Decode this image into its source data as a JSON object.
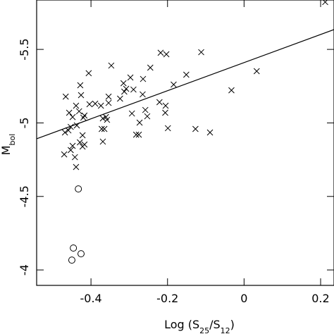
{
  "chart_data": {
    "type": "scatter",
    "xlabel_parts": [
      {
        "text": "Log (S"
      },
      {
        "text": "25",
        "sub": true
      },
      {
        "text": "/S"
      },
      {
        "text": "12",
        "sub": true
      },
      {
        "text": ")"
      }
    ],
    "ylabel_parts": [
      {
        "text": "M"
      },
      {
        "text": "bol",
        "sub": true
      }
    ],
    "xlim": [
      -0.542,
      0.235
    ],
    "ylim": [
      -3.895,
      -5.836
    ],
    "xticks": [
      -0.4,
      -0.2,
      0,
      0.2
    ],
    "yticks": [
      -5.5,
      -5,
      -4.5,
      -4
    ],
    "fit_line": {
      "x": [
        -0.542,
        0.235
      ],
      "y": [
        -4.892,
        -5.635
      ],
      "color": "#000000"
    },
    "series": [
      {
        "marker": "x",
        "color": "#000000",
        "x": [
          0.212,
          -0.466,
          -0.428,
          -0.406,
          -0.426,
          -0.439,
          -0.431,
          -0.457,
          -0.448,
          -0.468,
          -0.459,
          -0.453,
          -0.437,
          -0.42,
          -0.404,
          -0.389,
          -0.417,
          -0.422,
          -0.429,
          -0.417,
          -0.422,
          -0.448,
          -0.453,
          -0.442,
          -0.47,
          -0.439,
          -0.374,
          -0.361,
          -0.369,
          -0.372,
          -0.365,
          -0.358,
          -0.369,
          -0.354,
          -0.347,
          -0.354,
          -0.324,
          -0.313,
          -0.315,
          -0.308,
          -0.297,
          -0.293,
          -0.289,
          -0.282,
          -0.275,
          -0.273,
          -0.265,
          -0.264,
          -0.258,
          -0.253,
          -0.245,
          -0.221,
          -0.218,
          -0.203,
          -0.206,
          -0.205,
          -0.199,
          -0.184,
          -0.151,
          -0.127,
          -0.112,
          -0.033,
          0.033,
          -0.089
        ],
        "values": [
          -5.822,
          -5.179,
          -5.256,
          -5.338,
          -5.189,
          -5.117,
          -5.079,
          -5.069,
          -5.04,
          -4.935,
          -4.949,
          -4.973,
          -4.983,
          -5.036,
          -5.127,
          -5.131,
          -5.05,
          -4.916,
          -4.868,
          -4.853,
          -4.839,
          -4.844,
          -4.815,
          -4.767,
          -4.786,
          -4.7,
          -5.117,
          -5.04,
          -5.031,
          -4.959,
          -4.959,
          -5.021,
          -4.873,
          -5.179,
          -5.39,
          -5.136,
          -5.165,
          -5.213,
          -5.27,
          -5.232,
          -5.309,
          -5.064,
          -5.227,
          -4.92,
          -4.92,
          -5.002,
          -5.194,
          -5.299,
          -5.088,
          -5.045,
          -5.376,
          -5.141,
          -5.477,
          -5.467,
          -5.069,
          -5.117,
          -4.964,
          -5.261,
          -5.328,
          -4.959,
          -5.481,
          -5.222,
          -5.352,
          -4.935
        ]
      },
      {
        "marker": "o",
        "color": "#000000",
        "x": [
          -0.433,
          -0.446,
          -0.426,
          -0.45
        ],
        "values": [
          -4.551,
          -4.149,
          -4.11,
          -4.067
        ]
      }
    ]
  }
}
